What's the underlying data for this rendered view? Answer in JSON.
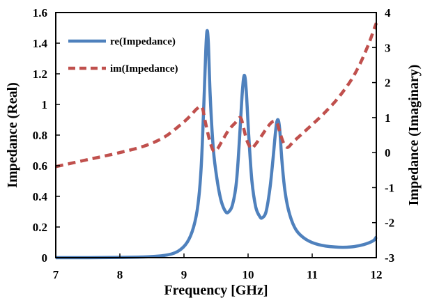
{
  "chart_data": {
    "type": "line",
    "title": "",
    "xlabel": "Frequency [GHz]",
    "ylabel_left": "Impedance (Real)",
    "ylabel_right": "Impedance (Imaginary)",
    "xlim": [
      7,
      12
    ],
    "ylim_left": [
      0,
      1.6
    ],
    "ylim_right": [
      -3,
      4
    ],
    "x_ticks": [
      "7",
      "8",
      "9",
      "10",
      "11",
      "12"
    ],
    "y_left_ticks": [
      "0",
      "0.2",
      "0.4",
      "0.6",
      "0.8",
      "1",
      "1.2",
      "1.4",
      "1.6"
    ],
    "y_right_ticks": [
      "-3",
      "-2",
      "-1",
      "0",
      "1",
      "2",
      "3",
      "4"
    ],
    "grid": false,
    "legend_position": "top-left",
    "series": [
      {
        "name": "re(Impedance)",
        "axis": "left",
        "color": "#4f81bd",
        "style": "solid",
        "points": [
          [
            7.0,
            0.0
          ],
          [
            7.5,
            0.0
          ],
          [
            8.0,
            0.002
          ],
          [
            8.4,
            0.005
          ],
          [
            8.7,
            0.015
          ],
          [
            8.9,
            0.04
          ],
          [
            9.05,
            0.1
          ],
          [
            9.15,
            0.2
          ],
          [
            9.22,
            0.35
          ],
          [
            9.27,
            0.6
          ],
          [
            9.31,
            1.0
          ],
          [
            9.34,
            1.35
          ],
          [
            9.36,
            1.48
          ],
          [
            9.38,
            1.4
          ],
          [
            9.41,
            1.05
          ],
          [
            9.46,
            0.7
          ],
          [
            9.52,
            0.5
          ],
          [
            9.58,
            0.37
          ],
          [
            9.65,
            0.3
          ],
          [
            9.7,
            0.3
          ],
          [
            9.76,
            0.35
          ],
          [
            9.82,
            0.5
          ],
          [
            9.87,
            0.8
          ],
          [
            9.91,
            1.08
          ],
          [
            9.94,
            1.19
          ],
          [
            9.97,
            1.1
          ],
          [
            10.01,
            0.8
          ],
          [
            10.06,
            0.5
          ],
          [
            10.12,
            0.33
          ],
          [
            10.18,
            0.27
          ],
          [
            10.22,
            0.26
          ],
          [
            10.28,
            0.3
          ],
          [
            10.34,
            0.45
          ],
          [
            10.39,
            0.65
          ],
          [
            10.43,
            0.83
          ],
          [
            10.46,
            0.9
          ],
          [
            10.49,
            0.85
          ],
          [
            10.53,
            0.62
          ],
          [
            10.58,
            0.42
          ],
          [
            10.65,
            0.28
          ],
          [
            10.75,
            0.18
          ],
          [
            10.9,
            0.12
          ],
          [
            11.1,
            0.085
          ],
          [
            11.35,
            0.07
          ],
          [
            11.6,
            0.07
          ],
          [
            11.8,
            0.085
          ],
          [
            11.95,
            0.11
          ],
          [
            12.0,
            0.135
          ]
        ]
      },
      {
        "name": "im(Impedance)",
        "axis": "right",
        "color": "#c0504d",
        "style": "dashed",
        "points": [
          [
            7.0,
            -0.4
          ],
          [
            7.5,
            -0.2
          ],
          [
            8.0,
            0.0
          ],
          [
            8.4,
            0.2
          ],
          [
            8.7,
            0.45
          ],
          [
            8.95,
            0.8
          ],
          [
            9.1,
            1.05
          ],
          [
            9.2,
            1.25
          ],
          [
            9.28,
            1.3
          ],
          [
            9.33,
            0.9
          ],
          [
            9.4,
            0.35
          ],
          [
            9.46,
            0.05
          ],
          [
            9.52,
            0.1
          ],
          [
            9.6,
            0.35
          ],
          [
            9.7,
            0.65
          ],
          [
            9.8,
            0.85
          ],
          [
            9.88,
            1.0
          ],
          [
            9.93,
            0.7
          ],
          [
            9.98,
            0.35
          ],
          [
            10.05,
            0.12
          ],
          [
            10.1,
            0.2
          ],
          [
            10.2,
            0.45
          ],
          [
            10.3,
            0.72
          ],
          [
            10.38,
            0.88
          ],
          [
            10.45,
            0.85
          ],
          [
            10.5,
            0.55
          ],
          [
            10.56,
            0.25
          ],
          [
            10.62,
            0.15
          ],
          [
            10.7,
            0.3
          ],
          [
            10.85,
            0.55
          ],
          [
            11.0,
            0.8
          ],
          [
            11.2,
            1.15
          ],
          [
            11.4,
            1.55
          ],
          [
            11.6,
            2.05
          ],
          [
            11.75,
            2.55
          ],
          [
            11.88,
            3.1
          ],
          [
            11.95,
            3.45
          ],
          [
            12.0,
            3.7
          ]
        ]
      }
    ]
  }
}
